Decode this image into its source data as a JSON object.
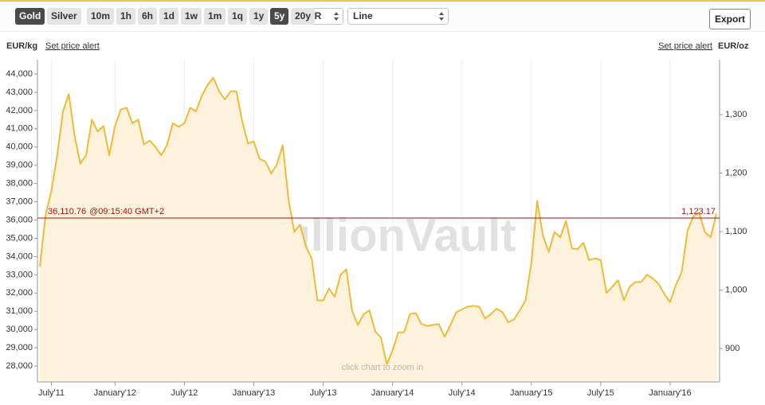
{
  "toolbar": {
    "metals": [
      "Gold",
      "Silver"
    ],
    "active_metal": 0,
    "periods": [
      "10m",
      "1h",
      "6h",
      "1d",
      "1w",
      "1m",
      "1q",
      "1y",
      "5y",
      "20y"
    ],
    "active_period": 8,
    "currency": "EUR",
    "chart_style": "Line",
    "export": "Export"
  },
  "chart_data": {
    "type": "line",
    "ylabel": "EUR/kg",
    "y2label": "EUR/oz",
    "alert_link": "Set price alert",
    "watermark": "BullionVault",
    "hint": "click chart to zoom in",
    "color": "#f2b935",
    "fill": "#fdf3dc",
    "grid": "x",
    "categories": [
      null,
      null,
      "July'11",
      null,
      null,
      null,
      null,
      null,
      null,
      null,
      null,
      null,
      null,
      "January'12",
      null,
      null,
      null,
      null,
      null,
      null,
      null,
      null,
      null,
      null,
      null,
      "July'12",
      null,
      null,
      null,
      null,
      null,
      null,
      null,
      null,
      null,
      null,
      null,
      "January'13",
      null,
      null,
      null,
      null,
      null,
      null,
      null,
      null,
      null,
      null,
      null,
      "July'13",
      null,
      null,
      null,
      null,
      null,
      null,
      null,
      null,
      null,
      null,
      null,
      "January'14",
      null,
      null,
      null,
      null,
      null,
      null,
      null,
      null,
      null,
      null,
      null,
      "July'14",
      null,
      null,
      null,
      null,
      null,
      null,
      null,
      null,
      null,
      null,
      null,
      "January'15",
      null,
      null,
      null,
      null,
      null,
      null,
      null,
      null,
      null,
      null,
      null,
      "July'15",
      null,
      null,
      null,
      null,
      null,
      null,
      null,
      null,
      null,
      null,
      null,
      "January'16",
      null,
      null,
      null,
      null,
      null,
      null,
      null,
      null
    ],
    "values": [
      33450,
      36300,
      37600,
      39550,
      41950,
      42900,
      40650,
      39100,
      39550,
      41500,
      40850,
      41150,
      39550,
      41150,
      42050,
      42150,
      41300,
      41500,
      40150,
      40350,
      40000,
      39550,
      40100,
      41300,
      41100,
      41300,
      42150,
      41950,
      42800,
      43400,
      43800,
      43050,
      42600,
      43050,
      43050,
      41400,
      40200,
      40300,
      39350,
      39200,
      38550,
      39050,
      40100,
      37150,
      35350,
      35750,
      34550,
      33900,
      31600,
      31600,
      32250,
      31800,
      33000,
      33300,
      31050,
      30250,
      30850,
      31050,
      29900,
      29550,
      28100,
      28850,
      29850,
      29850,
      30850,
      30900,
      30300,
      30200,
      30250,
      30300,
      29600,
      30250,
      30950,
      31100,
      31250,
      31300,
      31250,
      30600,
      30850,
      31150,
      30950,
      30400,
      30550,
      31050,
      31600,
      33650,
      37050,
      35150,
      34250,
      35350,
      35050,
      35950,
      34450,
      34400,
      34750,
      33800,
      33900,
      33800,
      32000,
      32350,
      32700,
      31600,
      32350,
      32600,
      32600,
      33000,
      32800,
      32500,
      31950,
      31500,
      32450,
      33150,
      35400,
      36200,
      36400,
      35350,
      35050,
      36350
    ],
    "ylim": [
      27130,
      44785
    ],
    "yticks": [
      {
        "value": 28000,
        "label": "28,000"
      },
      {
        "value": 29000,
        "label": "29,000"
      },
      {
        "value": 30000,
        "label": "30,000"
      },
      {
        "value": 31000,
        "label": "31,000"
      },
      {
        "value": 32000,
        "label": "32,000"
      },
      {
        "value": 33000,
        "label": "33,000"
      },
      {
        "value": 34000,
        "label": "34,000"
      },
      {
        "value": 35000,
        "label": "35,000"
      },
      {
        "value": 36000,
        "label": "36,000"
      },
      {
        "value": 37000,
        "label": "37,000"
      },
      {
        "value": 38000,
        "label": "38,000"
      },
      {
        "value": 39000,
        "label": "39,000"
      },
      {
        "value": 40000,
        "label": "40,000"
      },
      {
        "value": 41000,
        "label": "41,000"
      },
      {
        "value": 42000,
        "label": "42,000"
      },
      {
        "value": 43000,
        "label": "43,000"
      },
      {
        "value": 44000,
        "label": "44,000"
      }
    ],
    "y2lim": [
      843,
      1394
    ],
    "y2ticks": [
      900,
      {
        "value": 1000,
        "label": "1,000"
      },
      {
        "value": 1100,
        "label": "1,100"
      },
      {
        "value": 1200,
        "label": "1,200"
      },
      {
        "value": 1300,
        "label": "1,300"
      }
    ],
    "reference_line": {
      "value": 36110.76,
      "label": "36,110.76",
      "note": "@09:15:40 GMT+2",
      "color": "#a31515",
      "y2": {
        "value": 1123.17,
        "label": "1,123.17"
      }
    }
  }
}
